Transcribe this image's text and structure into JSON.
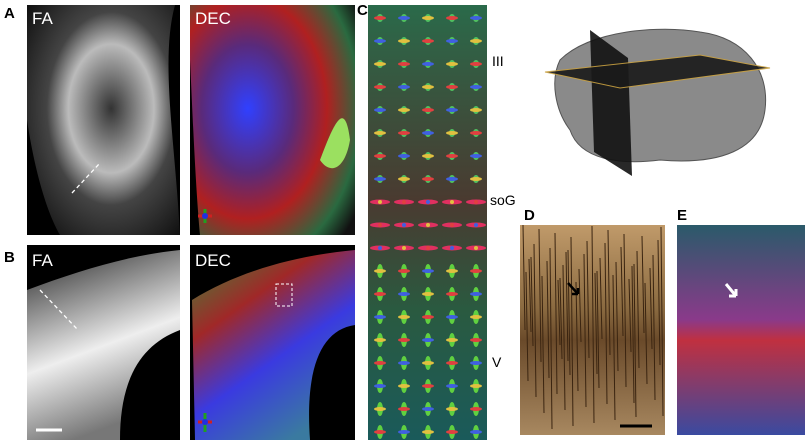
{
  "panels": [
    {
      "letter": "A",
      "images": [
        "FA",
        "DEC"
      ]
    },
    {
      "letter": "B",
      "images": [
        "FA",
        "DEC"
      ]
    },
    {
      "letter": "C",
      "layers": [
        "III",
        "soG",
        "V"
      ]
    },
    {
      "letter": "D"
    },
    {
      "letter": "E"
    }
  ]
}
